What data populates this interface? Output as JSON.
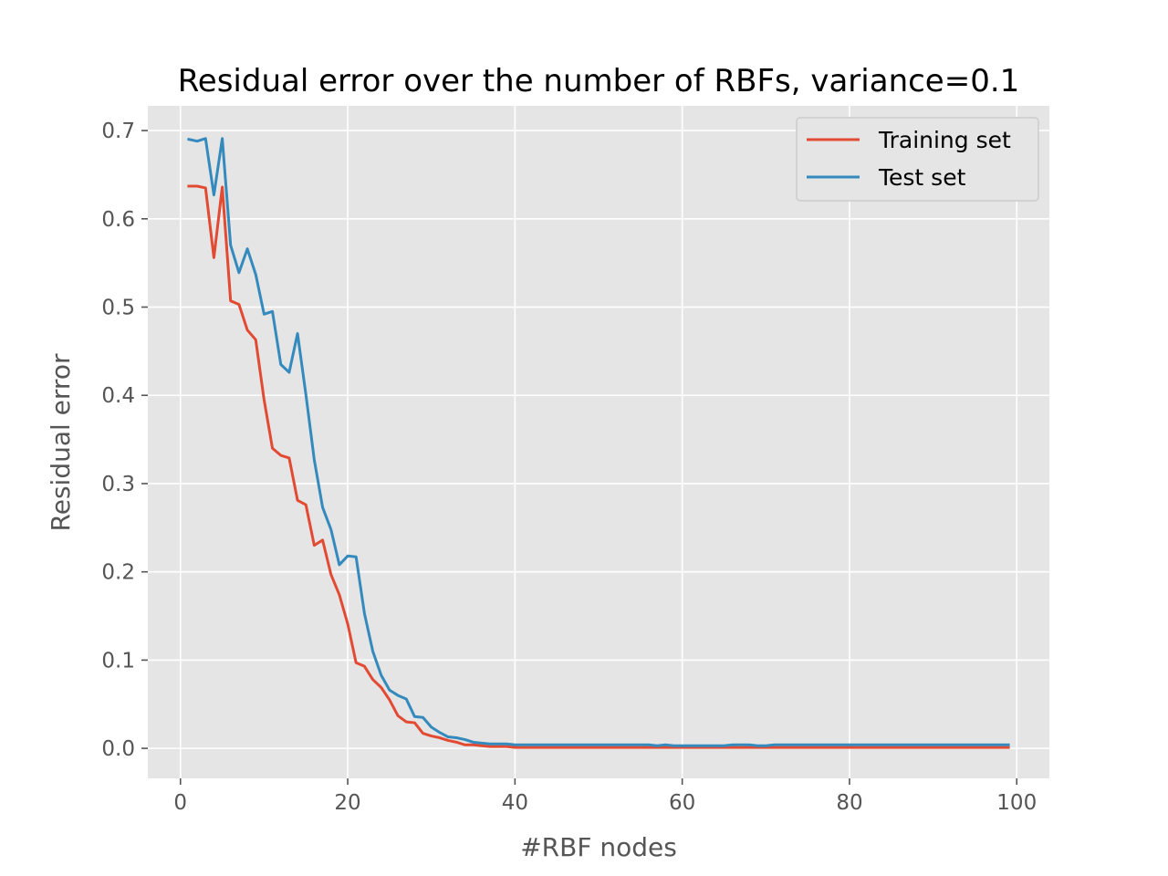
{
  "chart_data": {
    "type": "line",
    "title": "Residual error over the number of RBFs, variance=0.1",
    "xlabel": "#RBF nodes",
    "ylabel": "Residual error",
    "xlim": [
      -3.9,
      103.9
    ],
    "ylim": [
      -0.034,
      0.728
    ],
    "xticks": [
      0,
      20,
      40,
      60,
      80,
      100
    ],
    "yticks": [
      0.0,
      0.1,
      0.2,
      0.3,
      0.4,
      0.5,
      0.6,
      0.7
    ],
    "xtick_labels": [
      "0",
      "20",
      "40",
      "60",
      "80",
      "100"
    ],
    "ytick_labels": [
      "0.0",
      "0.1",
      "0.2",
      "0.3",
      "0.4",
      "0.5",
      "0.6",
      "0.7"
    ],
    "grid": true,
    "legend_position": "top-right",
    "background": "#e5e5e5",
    "x": [
      1,
      2,
      3,
      4,
      5,
      6,
      7,
      8,
      9,
      10,
      11,
      12,
      13,
      14,
      15,
      16,
      17,
      18,
      19,
      20,
      21,
      22,
      23,
      24,
      25,
      26,
      27,
      28,
      29,
      30,
      31,
      32,
      33,
      34,
      35,
      36,
      37,
      38,
      39,
      40,
      41,
      42,
      43,
      44,
      45,
      46,
      47,
      48,
      49,
      50,
      51,
      52,
      53,
      54,
      55,
      56,
      57,
      58,
      59,
      60,
      61,
      62,
      63,
      64,
      65,
      66,
      67,
      68,
      69,
      70,
      71,
      72,
      73,
      74,
      75,
      76,
      77,
      78,
      79,
      80,
      81,
      82,
      83,
      84,
      85,
      86,
      87,
      88,
      89,
      90,
      91,
      92,
      93,
      94,
      95,
      96,
      97,
      98,
      99
    ],
    "series": [
      {
        "name": "Training set",
        "color": "#e24a33",
        "values": [
          0.637,
          0.637,
          0.635,
          0.556,
          0.636,
          0.507,
          0.503,
          0.474,
          0.463,
          0.395,
          0.34,
          0.332,
          0.329,
          0.281,
          0.276,
          0.23,
          0.236,
          0.197,
          0.174,
          0.141,
          0.097,
          0.093,
          0.078,
          0.069,
          0.055,
          0.037,
          0.03,
          0.029,
          0.017,
          0.014,
          0.012,
          0.009,
          0.007,
          0.004,
          0.004,
          0.003,
          0.002,
          0.002,
          0.002,
          0.001,
          0.001,
          0.001,
          0.001,
          0.001,
          0.001,
          0.001,
          0.001,
          0.001,
          0.001,
          0.001,
          0.001,
          0.001,
          0.001,
          0.001,
          0.001,
          0.001,
          0.001,
          0.001,
          0.001,
          0.001,
          0.001,
          0.001,
          0.001,
          0.001,
          0.001,
          0.001,
          0.001,
          0.001,
          0.001,
          0.001,
          0.001,
          0.001,
          0.001,
          0.001,
          0.001,
          0.001,
          0.001,
          0.001,
          0.001,
          0.001,
          0.001,
          0.001,
          0.001,
          0.001,
          0.001,
          0.001,
          0.001,
          0.001,
          0.001,
          0.001,
          0.001,
          0.001,
          0.001,
          0.001,
          0.001,
          0.001,
          0.001,
          0.001,
          0.001
        ]
      },
      {
        "name": "Test set",
        "color": "#348abd",
        "values": [
          0.69,
          0.688,
          0.691,
          0.627,
          0.691,
          0.57,
          0.539,
          0.566,
          0.537,
          0.492,
          0.495,
          0.435,
          0.426,
          0.47,
          0.401,
          0.327,
          0.273,
          0.248,
          0.208,
          0.218,
          0.217,
          0.153,
          0.11,
          0.083,
          0.066,
          0.06,
          0.056,
          0.036,
          0.035,
          0.024,
          0.018,
          0.013,
          0.012,
          0.01,
          0.007,
          0.006,
          0.005,
          0.005,
          0.005,
          0.004,
          0.004,
          0.004,
          0.004,
          0.004,
          0.004,
          0.004,
          0.004,
          0.004,
          0.004,
          0.004,
          0.004,
          0.004,
          0.004,
          0.004,
          0.004,
          0.004,
          0.003,
          0.004,
          0.003,
          0.003,
          0.003,
          0.003,
          0.003,
          0.003,
          0.003,
          0.004,
          0.004,
          0.004,
          0.003,
          0.003,
          0.004,
          0.004,
          0.004,
          0.004,
          0.004,
          0.004,
          0.004,
          0.004,
          0.004,
          0.004,
          0.004,
          0.004,
          0.004,
          0.004,
          0.004,
          0.004,
          0.004,
          0.004,
          0.004,
          0.004,
          0.004,
          0.004,
          0.004,
          0.004,
          0.004,
          0.004,
          0.004,
          0.004,
          0.004
        ]
      }
    ]
  }
}
